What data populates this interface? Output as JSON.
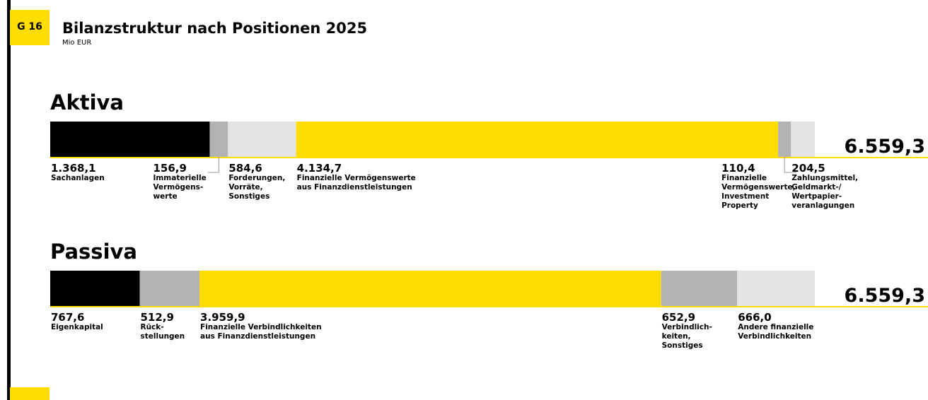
{
  "badge": "G 16",
  "title": "Bilanzstruktur nach Positionen 2025",
  "subtitle": "Mio EUR",
  "chart_data": [
    {
      "type": "stacked_bar",
      "title": "Aktiva",
      "categories": [
        "Sachanlagen",
        "Immaterielle\nVermögens-\nwerte",
        "Forderungen,\nVorräte,\nSonstiges",
        "Finanzielle Vermögenswerte\naus Finanzdienstleistungen",
        "Finanzielle\nVermögenswerte,\nInvestment\nProperty",
        "Zahlungsmittel,\nGeldmarkt-/\nWertpapier-\nveranlagungen"
      ],
      "values": [
        1368.1,
        156.9,
        584.6,
        4134.7,
        110.4,
        204.5
      ],
      "value_labels": [
        "1.368,1",
        "156,9",
        "584,6",
        "4.134,7",
        "110,4",
        "204,5"
      ],
      "colors": [
        "#000000",
        "#b3b3b3",
        "#e3e3e3",
        "#ffdd00",
        "#b3b3b3",
        "#e3e3e3"
      ],
      "total": 6559.3,
      "total_label": "6.559,3"
    },
    {
      "type": "stacked_bar",
      "title": "Passiva",
      "categories": [
        "Eigenkapital",
        "Rück-\nstellungen",
        "Finanzielle Verbindlichkeiten\naus Finanzdienstleistungen",
        "Verbindlich-\nkeiten,\nSonstiges",
        "Andere finanzielle\nVerbindlichkeiten"
      ],
      "values": [
        767.6,
        512.9,
        3959.9,
        652.9,
        666.0
      ],
      "value_labels": [
        "767,6",
        "512,9",
        "3.959,9",
        "652,9",
        "666,0"
      ],
      "colors": [
        "#000000",
        "#b3b3b3",
        "#ffdd00",
        "#b3b3b3",
        "#e3e3e3"
      ],
      "total": 6559.3,
      "total_label": "6.559,3"
    }
  ]
}
